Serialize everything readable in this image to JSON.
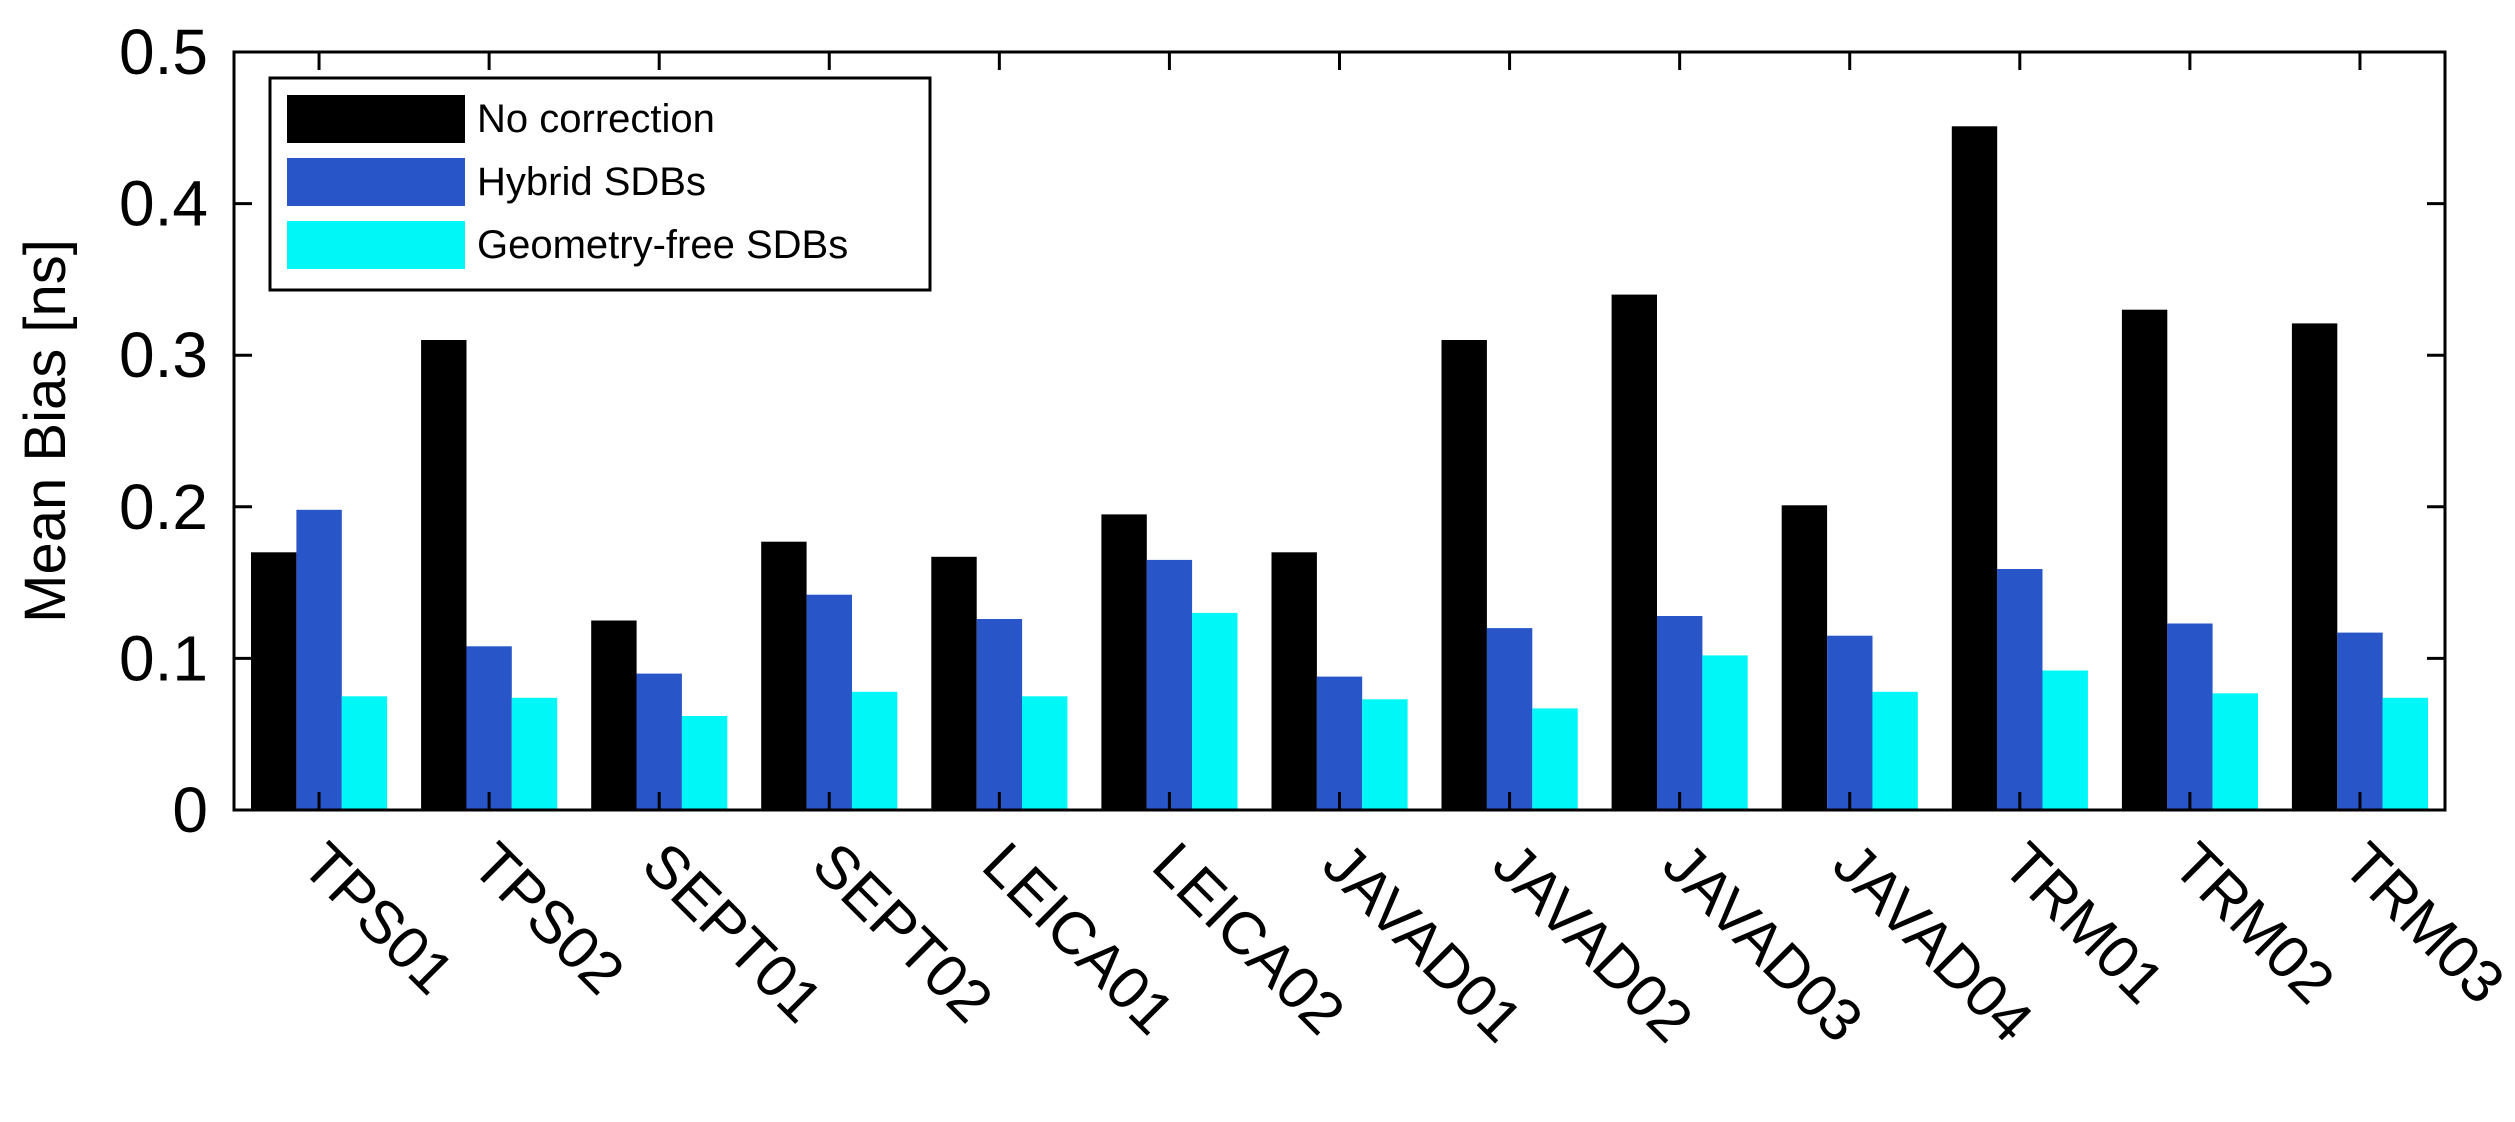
{
  "chart_data": {
    "type": "bar",
    "title": "",
    "xlabel": "",
    "ylabel": "Mean Bias [ns]",
    "ylim": [
      0,
      0.5
    ],
    "yticks": [
      0,
      0.1,
      0.2,
      0.3,
      0.4,
      0.5
    ],
    "ytick_labels": [
      "0",
      "0.1",
      "0.2",
      "0.3",
      "0.4",
      "0.5"
    ],
    "grid": false,
    "legend_position": "top-left",
    "categories": [
      "TPS01",
      "TPS02",
      "SEPT01",
      "SEPT02",
      "LEICA01",
      "LEICA02",
      "JAVAD01",
      "JAVAD02",
      "JAVAD03",
      "JAVAD04",
      "TRM01",
      "TRM02",
      "TRM03"
    ],
    "series": [
      {
        "name": "No correction",
        "color": "#000000",
        "values": [
          0.17,
          0.31,
          0.125,
          0.177,
          0.167,
          0.195,
          0.17,
          0.31,
          0.34,
          0.201,
          0.451,
          0.33,
          0.321
        ]
      },
      {
        "name": "Hybrid SDBs",
        "color": "#2855c8",
        "values": [
          0.198,
          0.108,
          0.09,
          0.142,
          0.126,
          0.165,
          0.088,
          0.12,
          0.128,
          0.115,
          0.159,
          0.123,
          0.117
        ]
      },
      {
        "name": "Geometry-free SDBs",
        "color": "#00f7f7",
        "values": [
          0.075,
          0.074,
          0.062,
          0.078,
          0.075,
          0.13,
          0.073,
          0.067,
          0.102,
          0.078,
          0.092,
          0.077,
          0.074
        ]
      }
    ]
  }
}
